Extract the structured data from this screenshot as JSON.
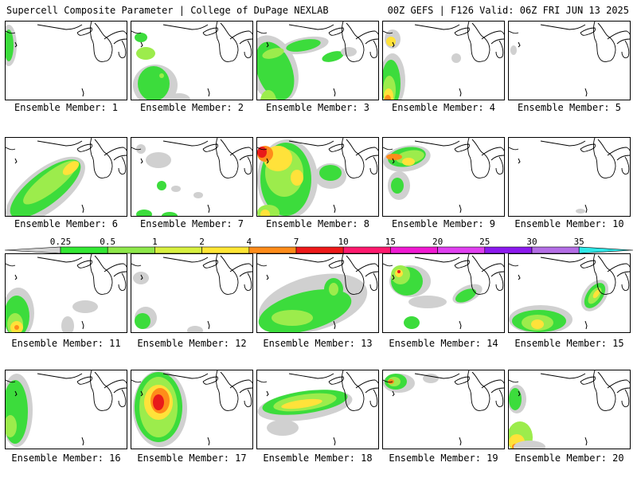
{
  "header": {
    "left": "Supercell Composite Parameter | College of DuPage NEXLAB",
    "right": "00Z GEFS | F126 Valid: 06Z FRI JUN 13 2025"
  },
  "colorbar": {
    "labels": [
      "0.25",
      "0.5",
      "1",
      "2",
      "4",
      "7",
      "10",
      "15",
      "20",
      "25",
      "30",
      "35"
    ],
    "colors": [
      "#d2d2d2",
      "#33e833",
      "#8ee84a",
      "#d8f040",
      "#ffe635",
      "#ff8c1a",
      "#ee1a1a",
      "#ff1a6e",
      "#f01ad2",
      "#e040f0",
      "#8c1aee",
      "#b46ee6",
      "#2ee8e8"
    ]
  },
  "palette": {
    "gray": "#d0d0d0",
    "green": "#3cdc3c",
    "lime": "#9cec4c",
    "yellow": "#ffe23a",
    "orange": "#ff8c1a",
    "red": "#e81a1a"
  },
  "members": [
    {
      "caption": "Ensemble Member: 1"
    },
    {
      "caption": "Ensemble Member: 2"
    },
    {
      "caption": "Ensemble Member: 3"
    },
    {
      "caption": "Ensemble Member: 4"
    },
    {
      "caption": "Ensemble Member: 5"
    },
    {
      "caption": "Ensemble Member: 6"
    },
    {
      "caption": "Ensemble Member: 7"
    },
    {
      "caption": "Ensemble Member: 8"
    },
    {
      "caption": "Ensemble Member: 9"
    },
    {
      "caption": "Ensemble Member: 10"
    },
    {
      "caption": "Ensemble Member: 11"
    },
    {
      "caption": "Ensemble Member: 12"
    },
    {
      "caption": "Ensemble Member: 13"
    },
    {
      "caption": "Ensemble Member: 14"
    },
    {
      "caption": "Ensemble Member: 15"
    },
    {
      "caption": "Ensemble Member: 16"
    },
    {
      "caption": "Ensemble Member: 17"
    },
    {
      "caption": "Ensemble Member: 18"
    },
    {
      "caption": "Ensemble Member: 19"
    },
    {
      "caption": "Ensemble Member: 20"
    }
  ]
}
